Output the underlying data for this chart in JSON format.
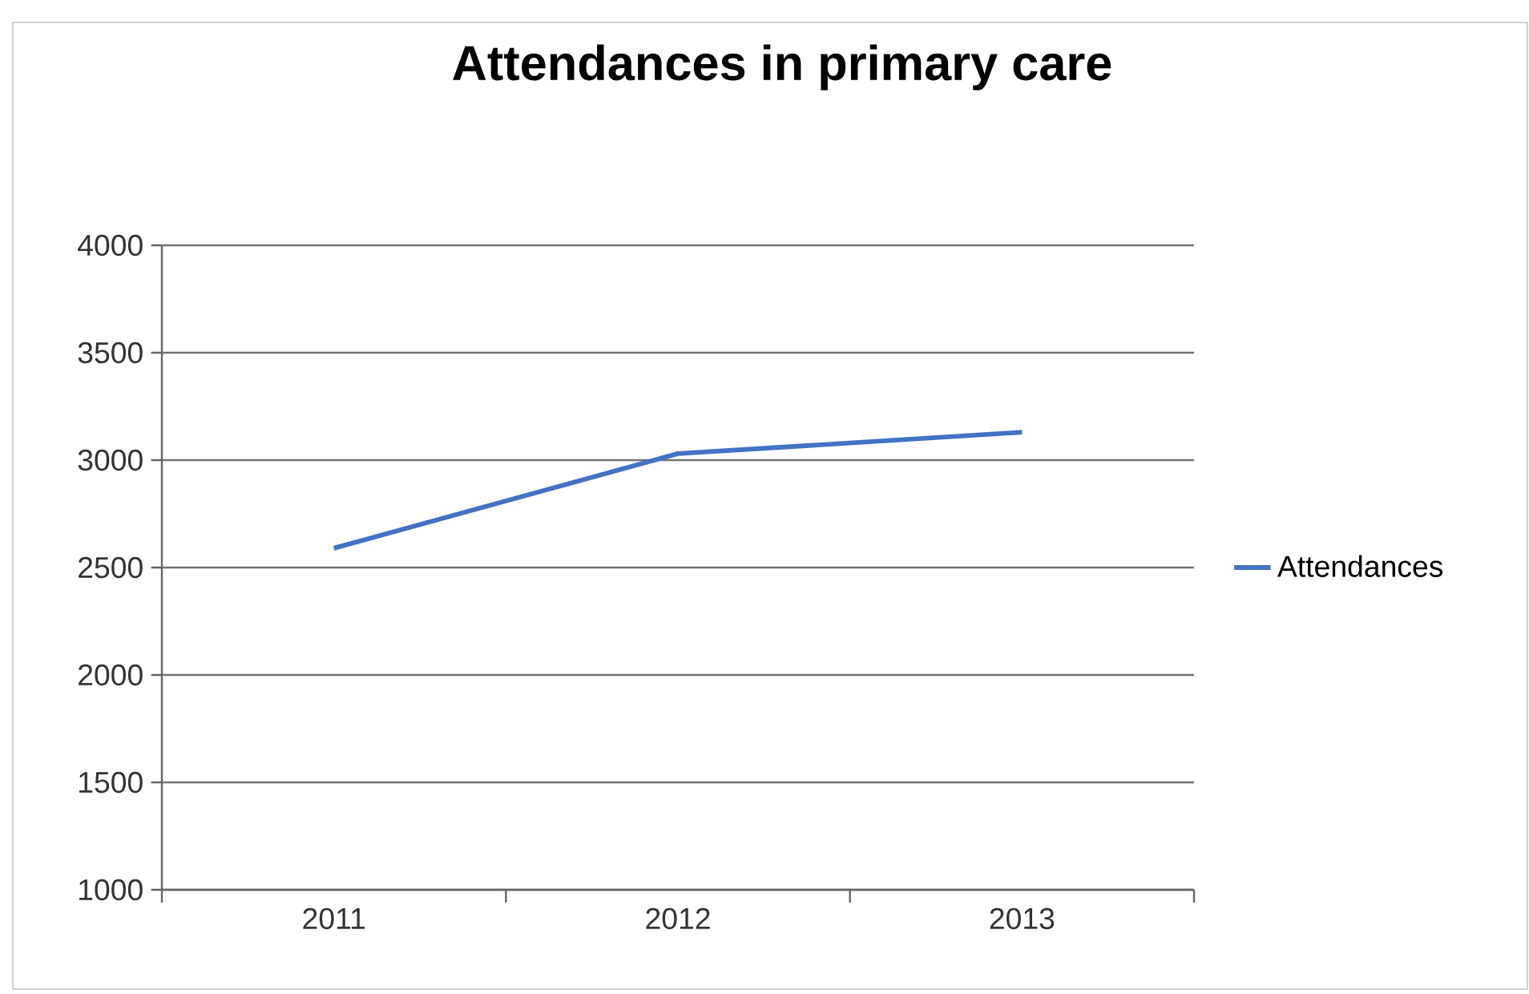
{
  "chart_data": {
    "type": "line",
    "title": "Attendances in primary care",
    "categories": [
      "2011",
      "2012",
      "2013"
    ],
    "series": [
      {
        "name": "Attendances",
        "color": "#4472c4",
        "values": [
          2590,
          3030,
          3130
        ]
      }
    ],
    "ylim": [
      1000,
      4000
    ],
    "yticks": [
      1000,
      1500,
      2000,
      2500,
      3000,
      3500,
      4000
    ],
    "grid": "y",
    "legend": "right",
    "marker": "none"
  }
}
